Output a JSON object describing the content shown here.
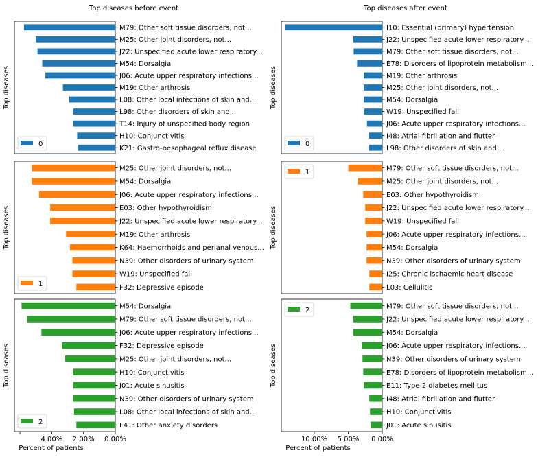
{
  "column_titles": [
    "Top diseases before event",
    "Top diseases after event"
  ],
  "chart_data": [
    {
      "type": "bar",
      "orientation": "horizontal",
      "column": "before",
      "row": 0,
      "color": "#1f77b4",
      "legend_label": "0",
      "legend_position": "lower left",
      "ylabel": "Top diseases",
      "xlabel": "",
      "x_inverted": true,
      "xlim": [
        0,
        0.0635
      ],
      "xticks": [],
      "xticklabels": [],
      "categories": [
        "M79: Other soft tissue disorders, not...",
        "M25: Other joint disorders, not...",
        "J22: Unspecified acute lower respiratory...",
        "M54: Dorsalgia",
        "J06: Acute upper respiratory infections...",
        "M19: Other arthrosis",
        "L08: Other local infections of skin and...",
        "L98: Other disorders of skin and...",
        "T14: Injury of unspecified body region",
        "H10: Conjunctivitis",
        "K21: Gastro-oesophageal reflux disease"
      ],
      "values": [
        0.0575,
        0.05,
        0.049,
        0.046,
        0.044,
        0.033,
        0.029,
        0.0265,
        0.0265,
        0.024,
        0.0235
      ]
    },
    {
      "type": "bar",
      "orientation": "horizontal",
      "column": "after",
      "row": 0,
      "color": "#1f77b4",
      "legend_label": "0",
      "legend_position": "lower left",
      "ylabel": "Top diseases",
      "xlabel": "",
      "x_inverted": true,
      "xlim": [
        0,
        0.1485
      ],
      "xticks": [],
      "xticklabels": [],
      "categories": [
        "I10: Essential (primary) hypertension",
        "J22: Unspecified acute lower respiratory...",
        "M79: Other soft tissue disorders, not...",
        "E78: Disorders of lipoprotein metabolism...",
        "M19: Other arthrosis",
        "M25: Other joint disorders, not...",
        "M54: Dorsalgia",
        "W19: Unspecified fall",
        "J06: Acute upper respiratory infections...",
        "I48: Atrial fibrillation and flutter",
        "L98: Other disorders of skin and..."
      ],
      "values": [
        0.1425,
        0.0425,
        0.042,
        0.037,
        0.027,
        0.027,
        0.027,
        0.0265,
        0.0225,
        0.0195,
        0.0195
      ]
    },
    {
      "type": "bar",
      "orientation": "horizontal",
      "column": "before",
      "row": 1,
      "color": "#ff7f0e",
      "legend_label": "1",
      "legend_position": "lower left",
      "ylabel": "Top diseases",
      "xlabel": "",
      "x_inverted": true,
      "xlim": [
        0,
        0.0635
      ],
      "xticks": [],
      "xticklabels": [],
      "categories": [
        "M25: Other joint disorders, not...",
        "M54: Dorsalgia",
        "J06: Acute upper respiratory infections...",
        "E03: Other hypothyroidism",
        "J22: Unspecified acute lower respiratory...",
        "M19: Other arthrosis",
        "K64: Haemorrhoids and perianal venous...",
        "N39: Other disorders of urinary system",
        "W19: Unspecified fall",
        "F32: Depressive episode"
      ],
      "values": [
        0.0525,
        0.0525,
        0.048,
        0.041,
        0.041,
        0.031,
        0.0285,
        0.027,
        0.027,
        0.0245
      ]
    },
    {
      "type": "bar",
      "orientation": "horizontal",
      "column": "after",
      "row": 1,
      "color": "#ff7f0e",
      "legend_label": "1",
      "legend_position": "upper left",
      "ylabel": "Top diseases",
      "xlabel": "",
      "x_inverted": true,
      "xlim": [
        0,
        0.1485
      ],
      "xticks": [],
      "xticklabels": [],
      "categories": [
        "M79: Other soft tissue disorders, not...",
        "M25: Other joint disorders, not...",
        "E03: Other hypothyroidism",
        "J22: Unspecified acute lower respiratory...",
        "W19: Unspecified fall",
        "J06: Acute upper respiratory infections...",
        "M54: Dorsalgia",
        "N39: Other disorders of urinary system",
        "I25: Chronic ischaemic heart disease",
        "L03: Cellulitis"
      ],
      "values": [
        0.05,
        0.036,
        0.028,
        0.025,
        0.025,
        0.023,
        0.023,
        0.023,
        0.019,
        0.019
      ]
    },
    {
      "type": "bar",
      "orientation": "horizontal",
      "column": "before",
      "row": 2,
      "color": "#2ca02c",
      "legend_label": "2",
      "legend_position": "lower left",
      "ylabel": "Top diseases",
      "xlabel": "Percent of patients",
      "x_inverted": true,
      "xlim": [
        0,
        0.0635
      ],
      "xticks": [
        0.06,
        0.04,
        0.02,
        0.0
      ],
      "xticklabels": [
        "",
        "4.00%",
        "2.00%",
        "0.00%"
      ],
      "categories": [
        "M54: Dorsalgia",
        "M79: Other soft tissue disorders, not...",
        "J06: Acute upper respiratory infections...",
        "F32: Depressive episode",
        "M25: Other joint disorders, not...",
        "H10: Conjunctivitis",
        "J01: Acute sinusitis",
        "N39: Other disorders of urinary system",
        "L08: Other local infections of skin and...",
        "F41: Other anxiety disorders"
      ],
      "values": [
        0.059,
        0.0555,
        0.0465,
        0.0335,
        0.0315,
        0.0265,
        0.0265,
        0.0265,
        0.026,
        0.0245
      ]
    },
    {
      "type": "bar",
      "orientation": "horizontal",
      "column": "after",
      "row": 2,
      "color": "#2ca02c",
      "legend_label": "2",
      "legend_position": "upper left",
      "ylabel": "Top diseases",
      "xlabel": "Percent of patients",
      "x_inverted": true,
      "xlim": [
        0,
        0.1485
      ],
      "xticks": [
        0.15,
        0.1,
        0.05,
        0.0
      ],
      "xticklabels": [
        "",
        "10.00%",
        "5.00%",
        "0.00%"
      ],
      "categories": [
        "M79: Other soft tissue disorders, not...",
        "J22: Unspecified acute lower respiratory...",
        "M54: Dorsalgia",
        "J06: Acute upper respiratory infections...",
        "N39: Other disorders of urinary system",
        "E78: Disorders of lipoprotein metabolism...",
        "E11: Type 2 diabetes mellitus",
        "I48: Atrial fibrillation and flutter",
        "H10: Conjunctivitis",
        "J01: Acute sinusitis"
      ],
      "values": [
        0.047,
        0.0425,
        0.0425,
        0.03,
        0.029,
        0.028,
        0.027,
        0.019,
        0.018,
        0.017
      ]
    }
  ]
}
